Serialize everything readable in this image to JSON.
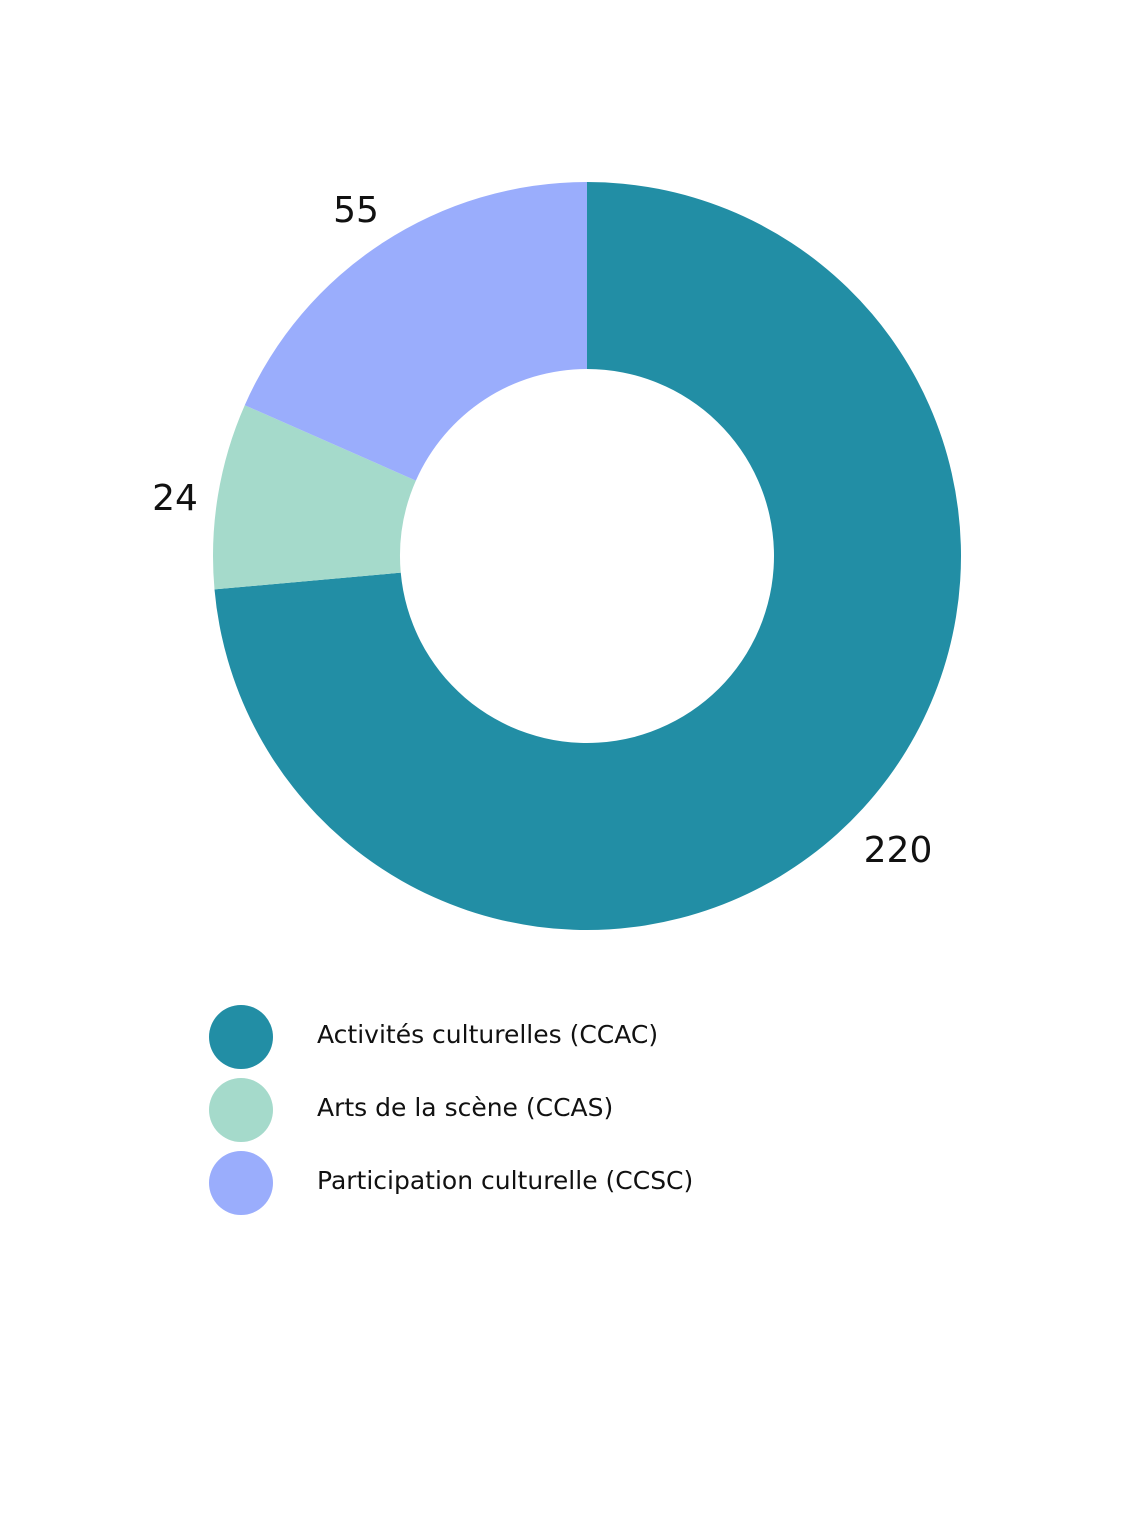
{
  "chart_data": {
    "type": "pie",
    "variant": "donut",
    "title": "",
    "categories": [
      "Activités culturelles (CCAC)",
      "Arts de la scène (CCAS)",
      "Participation culturelle (CCSC)"
    ],
    "values": [
      220,
      24,
      55
    ],
    "colors": [
      "#228EA5",
      "#A5DACB",
      "#9AADFC"
    ],
    "labels": [
      "220",
      "24",
      "55"
    ],
    "legend_position": "bottom",
    "start_angle": "12 o'clock",
    "direction": "clockwise"
  },
  "legend": {
    "items": [
      {
        "label": "Activités culturelles (CCAC)",
        "color": "#228EA5"
      },
      {
        "label": "Arts de la scène (CCAS)",
        "color": "#A5DACB"
      },
      {
        "label": "Participation culturelle (CCSC)",
        "color": "#9AADFC"
      }
    ]
  }
}
